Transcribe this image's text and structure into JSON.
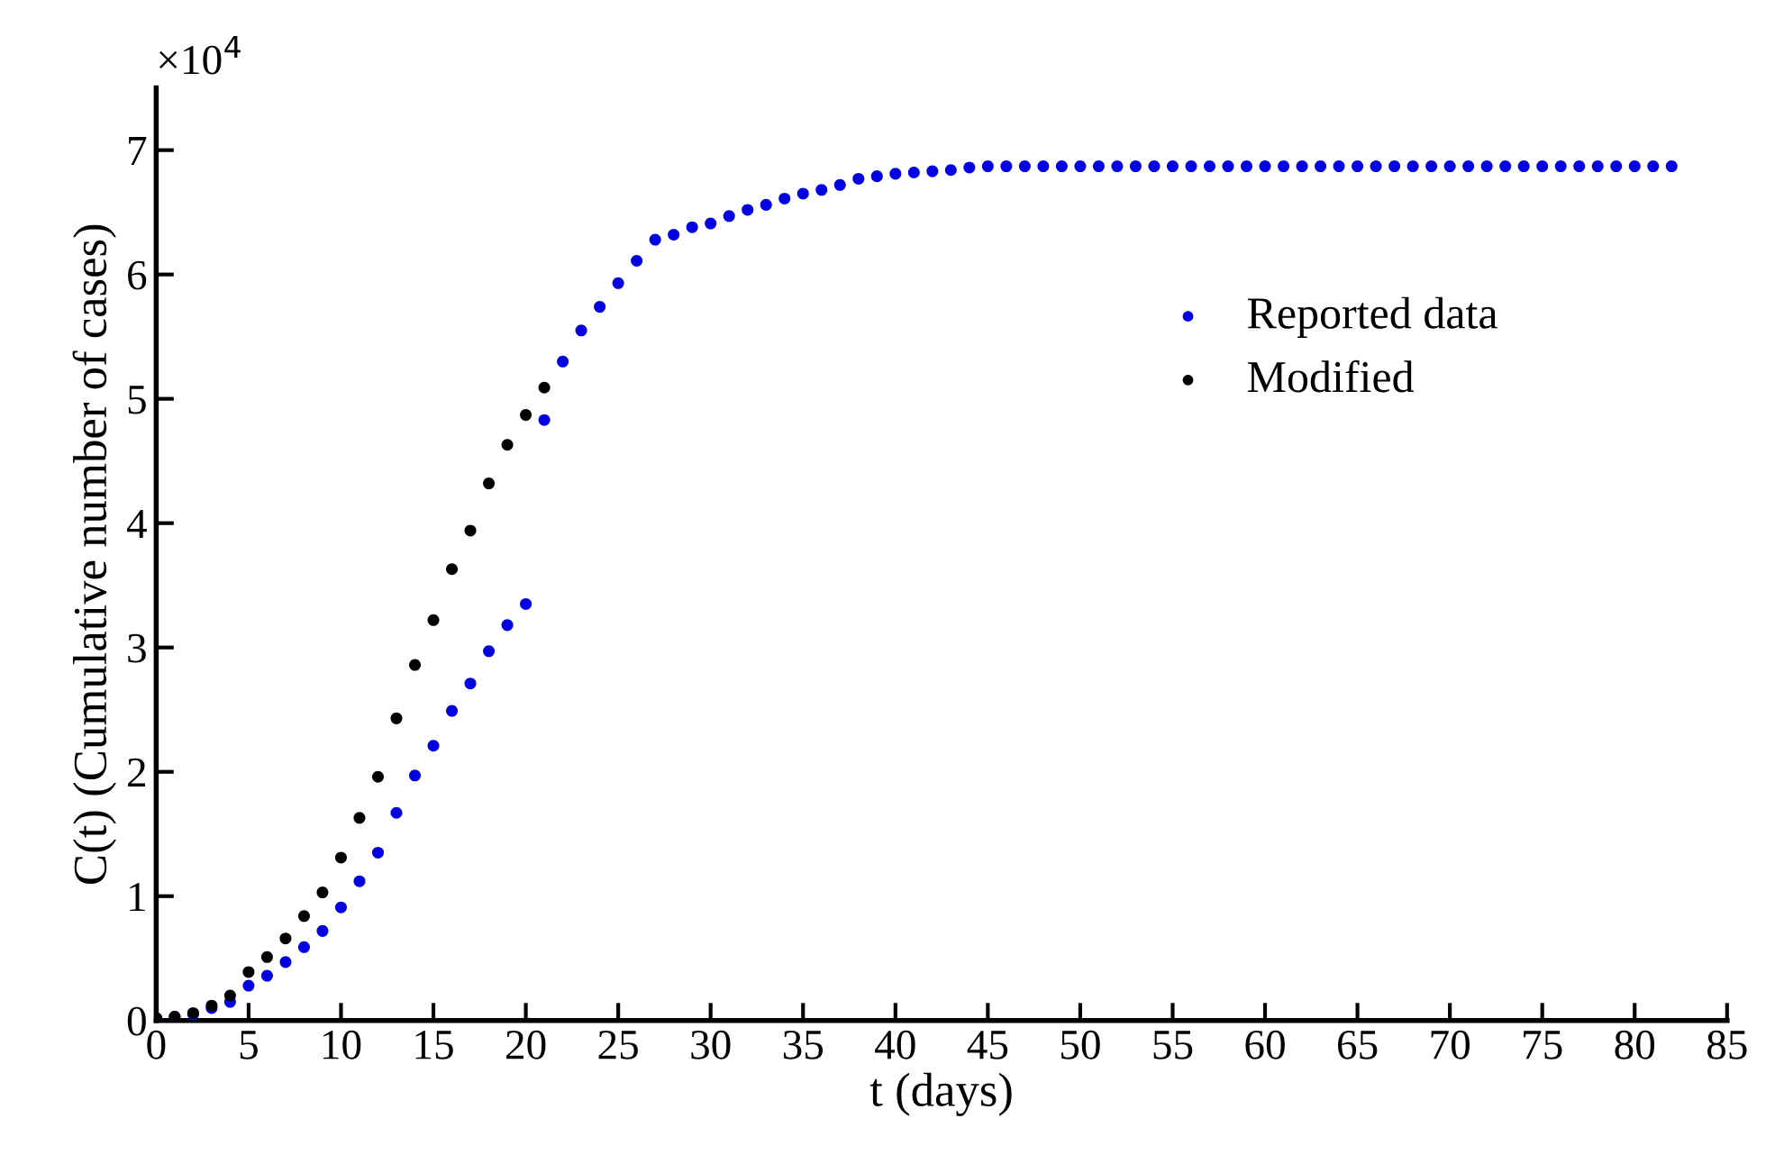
{
  "chart_data": {
    "type": "scatter",
    "xlabel": "t (days)",
    "ylabel": "C(t) (Cumulative number of cases)",
    "annotations": [
      "×10$^{4}$"
    ],
    "xlim": [
      0,
      85
    ],
    "xticks": [
      0,
      5,
      10,
      15,
      20,
      25,
      30,
      35,
      40,
      45,
      50,
      55,
      60,
      65,
      70,
      75,
      80,
      85
    ],
    "ylim": [
      0,
      7.5
    ],
    "yticks": [
      0,
      1,
      2,
      3,
      4,
      5,
      6,
      7
    ],
    "legend": "right",
    "marker": "circle",
    "grid": false,
    "series": [
      {
        "name": "Reported data",
        "color": "#0000e0",
        "x": [
          0,
          1,
          2,
          3,
          4,
          5,
          6,
          7,
          8,
          9,
          10,
          11,
          12,
          13,
          14,
          15,
          16,
          17,
          18,
          19,
          20,
          21,
          22,
          23,
          24,
          25,
          26,
          27,
          28,
          29,
          30,
          31,
          32,
          33,
          34,
          35,
          36,
          37,
          38,
          39,
          40,
          41,
          42,
          43,
          44,
          45,
          46,
          47,
          48,
          49,
          50,
          51,
          52,
          53,
          54,
          55,
          56,
          57,
          58,
          59,
          60,
          61,
          62,
          63,
          64,
          65,
          66,
          67,
          68,
          69,
          70,
          71,
          72,
          73,
          74,
          75,
          76,
          77,
          78,
          79,
          80,
          81,
          82
        ],
        "values": [
          0.02,
          0.03,
          0.05,
          0.1,
          0.15,
          0.28,
          0.36,
          0.47,
          0.59,
          0.72,
          0.91,
          1.12,
          1.35,
          1.67,
          1.97,
          2.21,
          2.49,
          2.71,
          2.97,
          3.18,
          3.35,
          4.83,
          5.3,
          5.55,
          5.74,
          5.93,
          6.11,
          6.28,
          6.32,
          6.38,
          6.41,
          6.47,
          6.52,
          6.56,
          6.61,
          6.65,
          6.68,
          6.72,
          6.77,
          6.79,
          6.81,
          6.82,
          6.83,
          6.84,
          6.86,
          6.87,
          6.87,
          6.87,
          6.87,
          6.87,
          6.87,
          6.87,
          6.87,
          6.87,
          6.87,
          6.87,
          6.87,
          6.87,
          6.87,
          6.87,
          6.87,
          6.87,
          6.87,
          6.87,
          6.87,
          6.87,
          6.87,
          6.87,
          6.87,
          6.87,
          6.87,
          6.87,
          6.87,
          6.87,
          6.87,
          6.87,
          6.87,
          6.87,
          6.87,
          6.87,
          6.87,
          6.87,
          6.87
        ]
      },
      {
        "name": "Modified",
        "color": "#000000",
        "x": [
          0,
          1,
          2,
          3,
          4,
          5,
          6,
          7,
          8,
          9,
          10,
          11,
          12,
          13,
          14,
          15,
          16,
          17,
          18,
          19,
          20,
          21
        ],
        "values": [
          0.02,
          0.03,
          0.06,
          0.12,
          0.2,
          0.39,
          0.51,
          0.66,
          0.84,
          1.03,
          1.31,
          1.63,
          1.96,
          2.43,
          2.86,
          3.22,
          3.63,
          3.94,
          4.32,
          4.63,
          4.87,
          5.09
        ]
      }
    ]
  }
}
